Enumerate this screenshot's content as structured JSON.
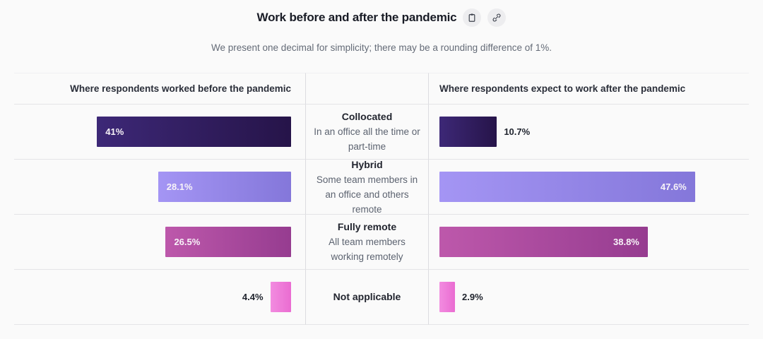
{
  "header": {
    "title": "Work before and after the pandemic",
    "subtitle": "We present one decimal for simplicity; there may be a rounding difference of 1%.",
    "icons": [
      {
        "name": "clipboard-icon"
      },
      {
        "name": "link-icon"
      }
    ]
  },
  "chart_data": {
    "type": "bar",
    "title": "Work before and after the pandemic",
    "orientation": "horizontal-mirrored",
    "left_axis": {
      "label": "Where respondents worked before the pandemic",
      "max_percent": 58.5,
      "bars_aligned": "right"
    },
    "right_axis": {
      "label": "Where respondents expect to work after the pandemic",
      "max_percent": 55,
      "bars_aligned": "left"
    },
    "categories": [
      {
        "label": "Collocated",
        "description": "In an office all the time or part-time",
        "before": 41,
        "before_label": "41%",
        "after": 10.7,
        "after_label": "10.7%",
        "color_light": "#3d2877",
        "color_dark": "#261449"
      },
      {
        "label": "Hybrid",
        "description": "Some team members in an office and others remote",
        "before": 28.1,
        "before_label": "28.1%",
        "after": 47.6,
        "after_label": "47.6%",
        "color_light": "#a495f4",
        "color_dark": "#8477da"
      },
      {
        "label": "Fully remote",
        "description": "All team members working remotely",
        "before": 26.5,
        "before_label": "26.5%",
        "after": 38.8,
        "after_label": "38.8%",
        "color_light": "#bd58ab",
        "color_dark": "#963c90"
      },
      {
        "label": "Not applicable",
        "description": "",
        "before": 4.4,
        "before_label": "4.4%",
        "after": 2.9,
        "after_label": "2.9%",
        "color_light": "#f28ce0",
        "color_dark": "#ea6cd1"
      }
    ]
  }
}
